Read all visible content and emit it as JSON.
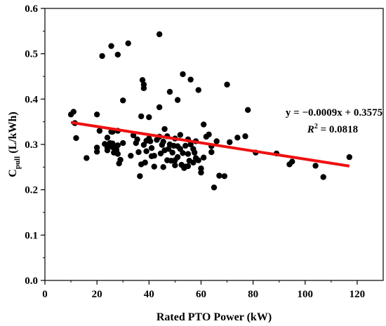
{
  "chart_data": {
    "type": "scatter",
    "xlabel": "Rated PTO Power (kW)",
    "ylabel_main": "C",
    "ylabel_sub": "pull",
    "ylabel_unit": " (L/kWh)",
    "xlim": [
      0,
      130
    ],
    "ylim": [
      0.0,
      0.6
    ],
    "xticks": [
      0,
      20,
      40,
      60,
      80,
      100,
      120
    ],
    "yticks": [
      0.0,
      0.1,
      0.2,
      0.3,
      0.4,
      0.5,
      0.6
    ],
    "grid": false,
    "point_color": "#000000",
    "fit_color": "#ee1111",
    "equation": "y = −0.0009x + 0.3575",
    "r2_label_main": "R",
    "r2_label_sup": "2",
    "r2_label_value": " = 0.0818",
    "fit": {
      "slope": -0.0009,
      "intercept": 0.3575,
      "x_range": [
        10,
        117
      ]
    },
    "points": [
      [
        10,
        0.366
      ],
      [
        11,
        0.372
      ],
      [
        11.5,
        0.347
      ],
      [
        12,
        0.314
      ],
      [
        16,
        0.27
      ],
      [
        20,
        0.366
      ],
      [
        20,
        0.293
      ],
      [
        20,
        0.284
      ],
      [
        21,
        0.33
      ],
      [
        22,
        0.495
      ],
      [
        23,
        0.301
      ],
      [
        24,
        0.293
      ],
      [
        24,
        0.287
      ],
      [
        24,
        0.315
      ],
      [
        25,
        0.303
      ],
      [
        25,
        0.301
      ],
      [
        25.5,
        0.517
      ],
      [
        25.5,
        0.328
      ],
      [
        26,
        0.328
      ],
      [
        26,
        0.302
      ],
      [
        26,
        0.294
      ],
      [
        26.5,
        0.282
      ],
      [
        27,
        0.296
      ],
      [
        27.5,
        0.288
      ],
      [
        28,
        0.498
      ],
      [
        28,
        0.33
      ],
      [
        28,
        0.298
      ],
      [
        28,
        0.279
      ],
      [
        28.5,
        0.258
      ],
      [
        29,
        0.266
      ],
      [
        30,
        0.397
      ],
      [
        30,
        0.303
      ],
      [
        32,
        0.523
      ],
      [
        33,
        0.275
      ],
      [
        34,
        0.32
      ],
      [
        35,
        0.303
      ],
      [
        35.5,
        0.311
      ],
      [
        36,
        0.283
      ],
      [
        36.5,
        0.23
      ],
      [
        37,
        0.362
      ],
      [
        37,
        0.256
      ],
      [
        37.5,
        0.442
      ],
      [
        38,
        0.432
      ],
      [
        38,
        0.424
      ],
      [
        38,
        0.299
      ],
      [
        38.5,
        0.26
      ],
      [
        39,
        0.308
      ],
      [
        39,
        0.285
      ],
      [
        40,
        0.36
      ],
      [
        40,
        0.313
      ],
      [
        40.5,
        0.307
      ],
      [
        41,
        0.292
      ],
      [
        41,
        0.274
      ],
      [
        42,
        0.251
      ],
      [
        42,
        0.275
      ],
      [
        43,
        0.31
      ],
      [
        44,
        0.543
      ],
      [
        44,
        0.382
      ],
      [
        44,
        0.317
      ],
      [
        44.5,
        0.28
      ],
      [
        45,
        0.299
      ],
      [
        45.5,
        0.306
      ],
      [
        45.5,
        0.25
      ],
      [
        46,
        0.334
      ],
      [
        46,
        0.287
      ],
      [
        47,
        0.318
      ],
      [
        47,
        0.265
      ],
      [
        47.5,
        0.29
      ],
      [
        48,
        0.416
      ],
      [
        48,
        0.3
      ],
      [
        48.5,
        0.264
      ],
      [
        49,
        0.282
      ],
      [
        49.5,
        0.297
      ],
      [
        50,
        0.313
      ],
      [
        50,
        0.265
      ],
      [
        50,
        0.254
      ],
      [
        51,
        0.398
      ],
      [
        51,
        0.296
      ],
      [
        51,
        0.272
      ],
      [
        52,
        0.321
      ],
      [
        52,
        0.29
      ],
      [
        52.5,
        0.255
      ],
      [
        53,
        0.455
      ],
      [
        53,
        0.281
      ],
      [
        53.5,
        0.248
      ],
      [
        54,
        0.297
      ],
      [
        54,
        0.251
      ],
      [
        55,
        0.311
      ],
      [
        55,
        0.279
      ],
      [
        55,
        0.252
      ],
      [
        55.5,
        0.264
      ],
      [
        56,
        0.443
      ],
      [
        56,
        0.3
      ],
      [
        57,
        0.29
      ],
      [
        57,
        0.26
      ],
      [
        57.5,
        0.282
      ],
      [
        58,
        0.307
      ],
      [
        58,
        0.27
      ],
      [
        59,
        0.42
      ],
      [
        59,
        0.265
      ],
      [
        60,
        0.247
      ],
      [
        60,
        0.238
      ],
      [
        61,
        0.344
      ],
      [
        61,
        0.271
      ],
      [
        62,
        0.317
      ],
      [
        63,
        0.322
      ],
      [
        64,
        0.283
      ],
      [
        64,
        0.296
      ],
      [
        65,
        0.205
      ],
      [
        66,
        0.307
      ],
      [
        67,
        0.231
      ],
      [
        69,
        0.23
      ],
      [
        70,
        0.432
      ],
      [
        71,
        0.305
      ],
      [
        74,
        0.315
      ],
      [
        77,
        0.318
      ],
      [
        78,
        0.376
      ],
      [
        81,
        0.282
      ],
      [
        89,
        0.28
      ],
      [
        94,
        0.256
      ],
      [
        95,
        0.262
      ],
      [
        104,
        0.253
      ],
      [
        107,
        0.228
      ],
      [
        117,
        0.272
      ]
    ]
  }
}
